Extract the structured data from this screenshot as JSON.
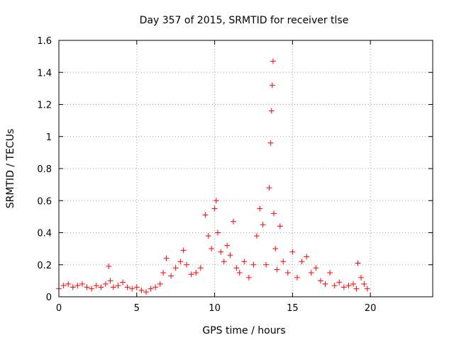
{
  "chart_data": {
    "type": "scatter",
    "title": "Day 357 of 2015, SRMTID for receiver tlse",
    "xlabel": "GPS time / hours",
    "ylabel": "SRMTID / TECUs",
    "xlim": [
      0,
      24
    ],
    "ylim": [
      0,
      1.6
    ],
    "xticks": [
      0,
      5,
      10,
      15,
      20
    ],
    "xtick_labels": [
      "0",
      "5",
      "10",
      "15",
      "20"
    ],
    "yticks": [
      0,
      0.2,
      0.4,
      0.6,
      0.8,
      1,
      1.2,
      1.4,
      1.6
    ],
    "ytick_labels": [
      "0",
      "0.2",
      "0.4",
      "0.6",
      "0.8",
      "1",
      "1.2",
      "1.4",
      "1.6"
    ],
    "grid": true,
    "marker": "+",
    "color": "#ff0000",
    "series": [
      {
        "name": "SRMTID",
        "x": [
          0.0,
          0.3,
          0.6,
          0.9,
          1.2,
          1.5,
          1.8,
          2.1,
          2.4,
          2.7,
          3.0,
          3.2,
          3.3,
          3.5,
          3.8,
          4.1,
          4.4,
          4.7,
          5.0,
          5.3,
          5.6,
          5.9,
          6.2,
          6.5,
          6.7,
          6.9,
          7.2,
          7.5,
          7.8,
          8.0,
          8.2,
          8.5,
          8.8,
          9.1,
          9.4,
          9.6,
          9.8,
          10.0,
          10.1,
          10.2,
          10.4,
          10.6,
          10.8,
          11.0,
          11.2,
          11.4,
          11.6,
          11.9,
          12.2,
          12.5,
          12.7,
          12.9,
          13.1,
          13.3,
          13.5,
          13.6,
          13.65,
          13.7,
          13.75,
          13.8,
          13.9,
          14.0,
          14.2,
          14.4,
          14.7,
          15.0,
          15.3,
          15.6,
          15.9,
          16.2,
          16.5,
          16.8,
          17.1,
          17.4,
          17.7,
          18.0,
          18.3,
          18.6,
          18.9,
          19.1,
          19.2,
          19.4,
          19.6,
          19.8
        ],
        "y": [
          0.05,
          0.07,
          0.08,
          0.06,
          0.07,
          0.08,
          0.06,
          0.05,
          0.07,
          0.06,
          0.08,
          0.19,
          0.1,
          0.06,
          0.07,
          0.09,
          0.06,
          0.05,
          0.06,
          0.04,
          0.03,
          0.05,
          0.06,
          0.08,
          0.15,
          0.24,
          0.13,
          0.18,
          0.22,
          0.29,
          0.2,
          0.14,
          0.15,
          0.18,
          0.51,
          0.38,
          0.3,
          0.55,
          0.6,
          0.4,
          0.28,
          0.22,
          0.32,
          0.26,
          0.47,
          0.18,
          0.15,
          0.22,
          0.12,
          0.2,
          0.38,
          0.55,
          0.45,
          0.2,
          0.68,
          0.96,
          1.16,
          1.32,
          1.47,
          0.52,
          0.3,
          0.17,
          0.44,
          0.22,
          0.15,
          0.28,
          0.12,
          0.22,
          0.25,
          0.15,
          0.18,
          0.1,
          0.08,
          0.15,
          0.07,
          0.09,
          0.06,
          0.07,
          0.08,
          0.05,
          0.21,
          0.12,
          0.08,
          0.05
        ]
      }
    ]
  }
}
